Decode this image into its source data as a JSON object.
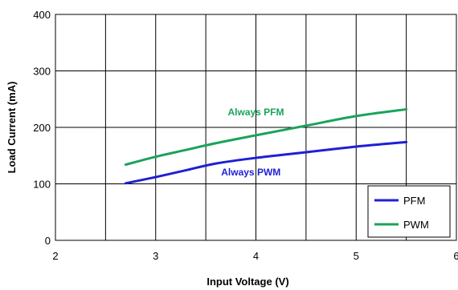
{
  "chart_data": {
    "type": "line",
    "title": "",
    "xlabel": "Input Voltage (V)",
    "ylabel": "Load Current  (mA)",
    "xlim": [
      2,
      6
    ],
    "ylim": [
      0,
      400
    ],
    "x_ticks": [
      2,
      3,
      4,
      5,
      6
    ],
    "y_ticks": [
      0,
      100,
      200,
      300,
      400
    ],
    "x_ticks_labels": [
      "2",
      "3",
      "4",
      "5",
      "6"
    ],
    "y_ticks_labels": [
      "0",
      "100",
      "200",
      "300",
      "400"
    ],
    "x_gridlines": [
      2.5,
      3,
      3.5,
      4,
      4.5,
      5,
      5.5
    ],
    "y_gridlines": [
      100,
      200,
      300
    ],
    "grid": true,
    "legend_position": "bottom-right",
    "series": [
      {
        "name": "PFM",
        "color": "#1f1fd6",
        "x": [
          2.7,
          3.0,
          3.3,
          3.6,
          4.0,
          4.5,
          5.0,
          5.5
        ],
        "y": [
          101,
          112,
          124,
          136,
          146,
          156,
          166,
          174
        ]
      },
      {
        "name": "PWM",
        "color": "#1aa35a",
        "x": [
          2.7,
          3.0,
          3.3,
          3.6,
          4.0,
          4.5,
          5.0,
          5.5
        ],
        "y": [
          134,
          148,
          160,
          172,
          186,
          203,
          220,
          232
        ]
      }
    ],
    "annotations": [
      {
        "text": "Always PFM",
        "x": 4.0,
        "y": 221,
        "color": "#1aa35a"
      },
      {
        "text": "Always PWM",
        "x": 3.95,
        "y": 115,
        "color": "#1f1fd6"
      }
    ]
  }
}
